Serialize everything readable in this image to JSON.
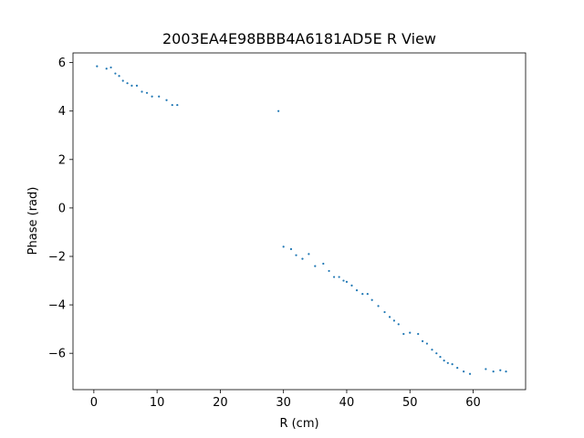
{
  "chart_data": {
    "type": "scatter",
    "title": "2003EA4E98BBB4A6181AD5E R View",
    "xlabel": "R (cm)",
    "ylabel": "Phase (rad)",
    "xlim": [
      -3.3,
      68.3
    ],
    "ylim": [
      -7.5,
      6.4
    ],
    "xticks": [
      0,
      10,
      20,
      30,
      40,
      50,
      60
    ],
    "yticks": [
      -6,
      -4,
      -2,
      0,
      2,
      4,
      6
    ],
    "grid": false,
    "marker_color": "#1f77b4",
    "series": [
      {
        "x": [
          0.5,
          2.0,
          2.7,
          3.4,
          4.0,
          4.6,
          5.3,
          6.0,
          6.8,
          7.6,
          8.4,
          9.2,
          10.3,
          11.5,
          12.4,
          13.2,
          29.2,
          30.0,
          31.2,
          32.0,
          33.0,
          34.0,
          35.0,
          36.3,
          37.2,
          38.0,
          38.8,
          39.5,
          40.0,
          40.8,
          41.6,
          42.5,
          43.3,
          44.0,
          45.0,
          46.0,
          46.8,
          47.5,
          48.2,
          49.0,
          50.0,
          51.3,
          52.0,
          52.7,
          53.5,
          54.2,
          54.8,
          55.4,
          56.0,
          56.7,
          57.5,
          58.5,
          59.5,
          62.0,
          63.2,
          64.3,
          65.2
        ],
        "y": [
          5.85,
          5.75,
          5.8,
          5.55,
          5.45,
          5.25,
          5.15,
          5.05,
          5.05,
          4.8,
          4.75,
          4.6,
          4.6,
          4.45,
          4.25,
          4.25,
          4.0,
          -1.6,
          -1.7,
          -1.95,
          -2.1,
          -1.9,
          -2.4,
          -2.3,
          -2.6,
          -2.85,
          -2.85,
          -3.0,
          -3.05,
          -3.2,
          -3.4,
          -3.55,
          -3.55,
          -3.8,
          -4.05,
          -4.3,
          -4.5,
          -4.65,
          -4.8,
          -5.2,
          -5.15,
          -5.2,
          -5.5,
          -5.6,
          -5.85,
          -6.0,
          -6.15,
          -6.3,
          -6.4,
          -6.45,
          -6.6,
          -6.75,
          -6.85,
          -6.65,
          -6.75,
          -6.7,
          -6.75
        ]
      }
    ]
  }
}
